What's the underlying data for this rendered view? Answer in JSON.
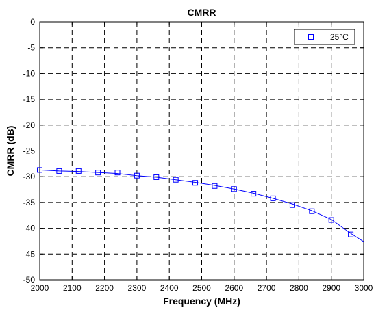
{
  "chart_data": {
    "type": "line",
    "title": "CMRR",
    "xlabel": "Frequency (MHz)",
    "ylabel": "CMRR (dB)",
    "xlim": [
      2000,
      3000
    ],
    "ylim": [
      -50,
      0
    ],
    "x_ticks": [
      2000,
      2100,
      2200,
      2300,
      2400,
      2500,
      2600,
      2700,
      2800,
      2900,
      3000
    ],
    "y_ticks": [
      0,
      -5,
      -10,
      -15,
      -20,
      -25,
      -30,
      -35,
      -40,
      -45,
      -50
    ],
    "x_tick_labels": [
      "2000",
      "2100",
      "2200",
      "2300",
      "2400",
      "2500",
      "2600",
      "2700",
      "2800",
      "2900",
      "3000"
    ],
    "y_tick_labels": [
      "0",
      "-5",
      "-10",
      "-15",
      "-20",
      "-25",
      "-30",
      "-35",
      "-40",
      "-45",
      "-50"
    ],
    "grid": true,
    "grid_style": "dashed",
    "legend_position": "top-right",
    "series": [
      {
        "name": "25°C",
        "color": "#0000ff",
        "marker": "square",
        "line_x": [
          2000,
          2060,
          2120,
          2180,
          2240,
          2300,
          2360,
          2420,
          2480,
          2540,
          2600,
          2660,
          2720,
          2780,
          2840,
          2900,
          2960,
          3000
        ],
        "line_y": [
          -28.7,
          -28.9,
          -29.0,
          -29.2,
          -29.4,
          -29.8,
          -30.1,
          -30.6,
          -31.1,
          -31.7,
          -32.4,
          -33.2,
          -34.2,
          -35.3,
          -36.6,
          -38.3,
          -41.0,
          -42.6
        ],
        "marker_x": [
          2000,
          2060,
          2120,
          2180,
          2240,
          2300,
          2360,
          2420,
          2480,
          2540,
          2600,
          2660,
          2720,
          2780,
          2840,
          2900,
          2960
        ],
        "marker_y": [
          -28.7,
          -28.9,
          -28.9,
          -29.2,
          -29.2,
          -29.8,
          -30.1,
          -30.6,
          -31.2,
          -31.8,
          -32.4,
          -33.3,
          -34.2,
          -35.5,
          -36.7,
          -38.4,
          -41.2
        ]
      }
    ]
  }
}
